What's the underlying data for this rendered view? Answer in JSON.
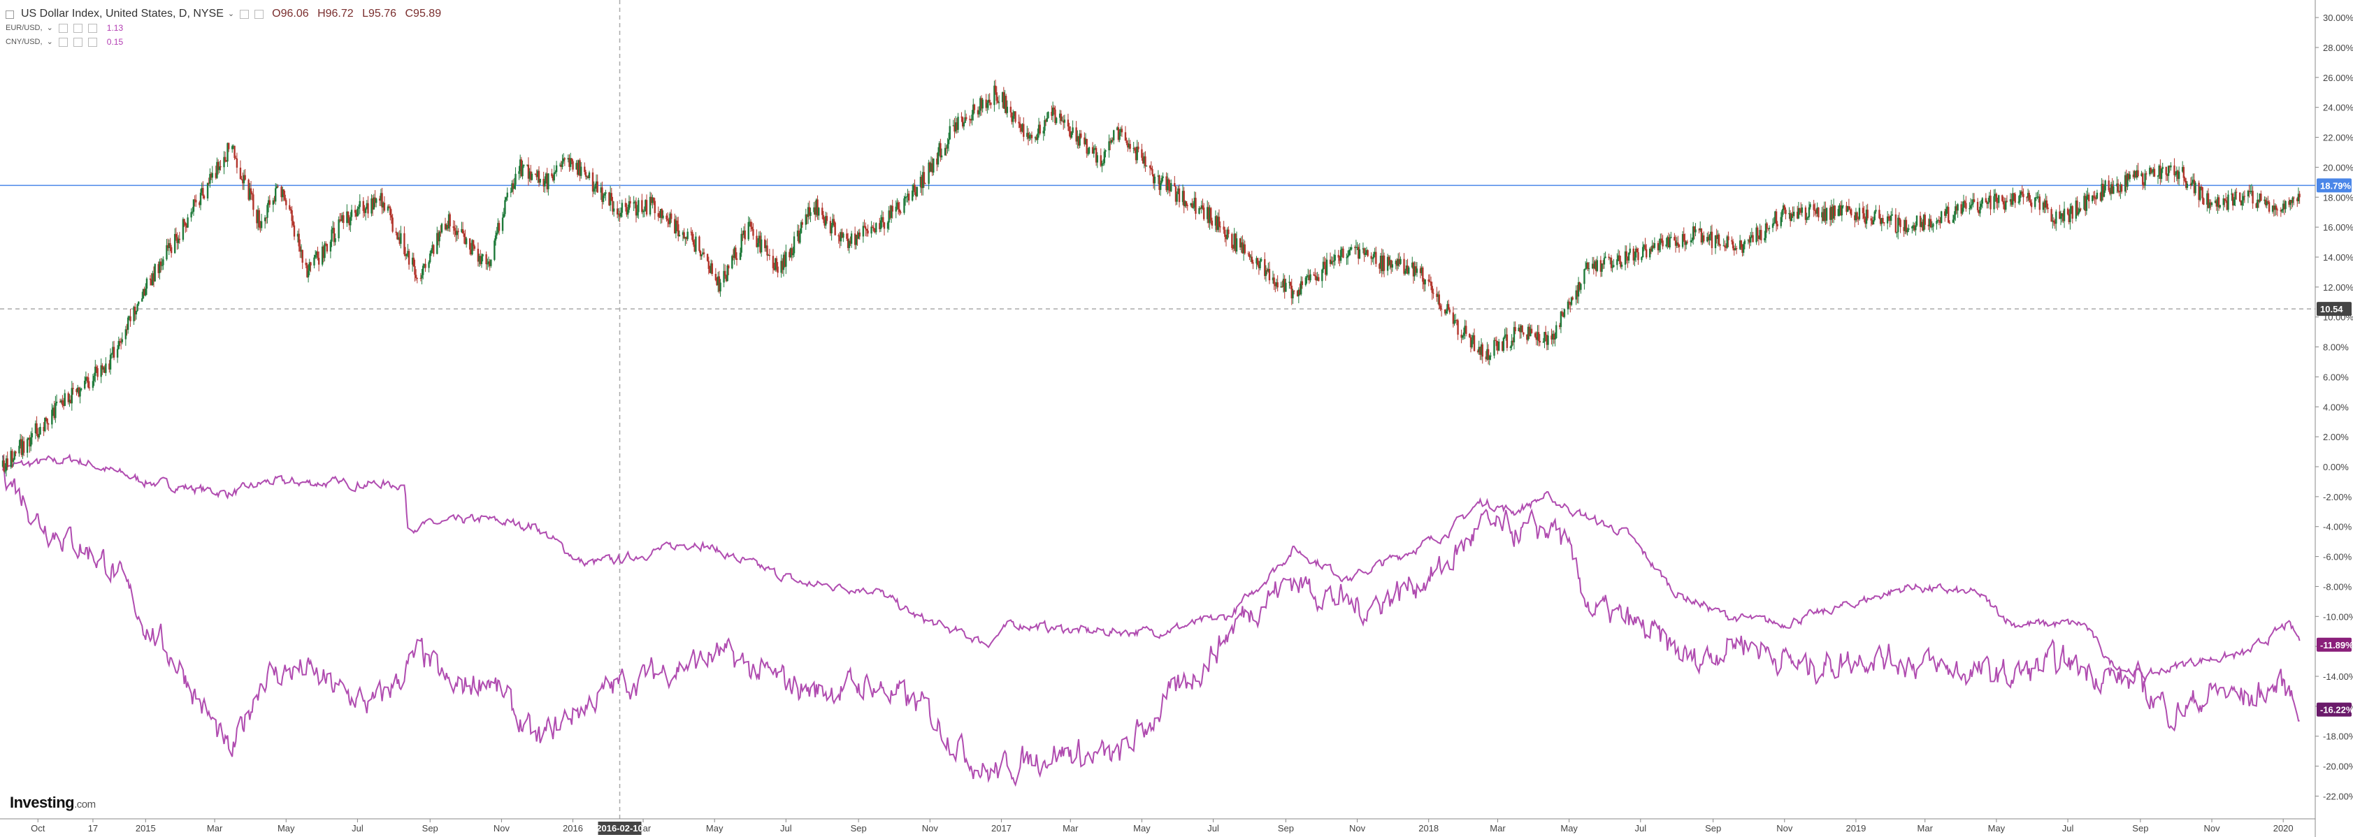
{
  "header": {
    "title": "US Dollar Index, United States, D, NYSE",
    "ohlc": {
      "o": "O96.06",
      "h": "H96.72",
      "l": "L95.76",
      "c": "C95.89"
    },
    "series_rows": [
      {
        "name": "EUR/USD,",
        "value": "1.13"
      },
      {
        "name": "CNY/USD,",
        "value": "0.15"
      }
    ]
  },
  "logo": {
    "text": "Investing",
    "suffix": ".com"
  },
  "colors": {
    "up": "#1f7a3a",
    "down": "#b2342b",
    "compare": "#b04cb0",
    "hline": "#4a86e8",
    "axis_text": "#444"
  },
  "chart_data": {
    "type": "line",
    "title": "US Dollar Index, United States, D, NYSE",
    "y_axis": {
      "unit": "percent",
      "ylim": [
        -23,
        31
      ],
      "ticks": [
        "30.00%",
        "28.00%",
        "26.00%",
        "24.00%",
        "22.00%",
        "20.00%",
        "18.00%",
        "16.00%",
        "14.00%",
        "12.00%",
        "10.00%",
        "8.00%",
        "6.00%",
        "4.00%",
        "2.00%",
        "0.00%",
        "-2.00%",
        "-4.00%",
        "-6.00%",
        "-8.00%",
        "-10.00%",
        "-12.00%",
        "-14.00%",
        "-16.00%",
        "-18.00%",
        "-20.00%",
        "-22.00%"
      ],
      "tick_values": [
        30,
        28,
        26,
        24,
        22,
        20,
        18,
        16,
        14,
        12,
        10,
        8,
        6,
        4,
        2,
        0,
        -2,
        -4,
        -6,
        -8,
        -10,
        -12,
        -14,
        -16,
        -18,
        -20,
        -22
      ]
    },
    "x_axis": {
      "xlim": [
        "2014-09-01",
        "2020-01-20"
      ],
      "ticks": [
        {
          "label": "Oct",
          "date": "2014-10-01"
        },
        {
          "label": "17",
          "date": "2014-11-17"
        },
        {
          "label": "2015",
          "date": "2015-01-01"
        },
        {
          "label": "Mar",
          "date": "2015-03-01"
        },
        {
          "label": "May",
          "date": "2015-05-01"
        },
        {
          "label": "Jul",
          "date": "2015-07-01"
        },
        {
          "label": "Sep",
          "date": "2015-09-01"
        },
        {
          "label": "Nov",
          "date": "2015-11-01"
        },
        {
          "label": "2016",
          "date": "2016-01-01"
        },
        {
          "label": "Mar",
          "date": "2016-03-01"
        },
        {
          "label": "May",
          "date": "2016-05-01"
        },
        {
          "label": "Jul",
          "date": "2016-07-01"
        },
        {
          "label": "Sep",
          "date": "2016-09-01"
        },
        {
          "label": "Nov",
          "date": "2016-11-01"
        },
        {
          "label": "2017",
          "date": "2017-01-01"
        },
        {
          "label": "Mar",
          "date": "2017-03-01"
        },
        {
          "label": "May",
          "date": "2017-05-01"
        },
        {
          "label": "Jul",
          "date": "2017-07-01"
        },
        {
          "label": "Sep",
          "date": "2017-09-01"
        },
        {
          "label": "Nov",
          "date": "2017-11-01"
        },
        {
          "label": "2018",
          "date": "2018-01-01"
        },
        {
          "label": "Mar",
          "date": "2018-03-01"
        },
        {
          "label": "May",
          "date": "2018-05-01"
        },
        {
          "label": "Jul",
          "date": "2018-07-01"
        },
        {
          "label": "Sep",
          "date": "2018-09-01"
        },
        {
          "label": "Nov",
          "date": "2018-11-01"
        },
        {
          "label": "2019",
          "date": "2019-01-01"
        },
        {
          "label": "Mar",
          "date": "2019-03-01"
        },
        {
          "label": "May",
          "date": "2019-05-01"
        },
        {
          "label": "Jul",
          "date": "2019-07-01"
        },
        {
          "label": "Sep",
          "date": "2019-09-01"
        },
        {
          "label": "Nov",
          "date": "2019-11-01"
        },
        {
          "label": "2020",
          "date": "2020-01-01"
        }
      ],
      "cursor_date": "2016-02-10"
    },
    "price_line": {
      "value": 18.79,
      "label": "18.79%"
    },
    "crosshair": {
      "value": 10.54,
      "label": "10.54",
      "date": "2016-02-10"
    },
    "series": [
      {
        "name": "US Dollar Index",
        "style": "candlestick",
        "points": [
          [
            "2014-09-01",
            0
          ],
          [
            "2014-10-01",
            2.5
          ],
          [
            "2014-11-01",
            5
          ],
          [
            "2014-12-01",
            7
          ],
          [
            "2015-01-01",
            12
          ],
          [
            "2015-02-01",
            16
          ],
          [
            "2015-03-15",
            21.5
          ],
          [
            "2015-04-10",
            16
          ],
          [
            "2015-04-25",
            19
          ],
          [
            "2015-05-20",
            13
          ],
          [
            "2015-06-20",
            16.5
          ],
          [
            "2015-07-20",
            18
          ],
          [
            "2015-08-24",
            12.5
          ],
          [
            "2015-09-15",
            16.5
          ],
          [
            "2015-10-20",
            13.5
          ],
          [
            "2015-11-15",
            20
          ],
          [
            "2015-12-10",
            19
          ],
          [
            "2015-12-31",
            20.5
          ],
          [
            "2016-02-10",
            17
          ],
          [
            "2016-03-10",
            17.5
          ],
          [
            "2016-04-20",
            14.5
          ],
          [
            "2016-05-05",
            12
          ],
          [
            "2016-05-30",
            16
          ],
          [
            "2016-06-25",
            13
          ],
          [
            "2016-07-25",
            17.5
          ],
          [
            "2016-08-20",
            15
          ],
          [
            "2016-09-25",
            16.5
          ],
          [
            "2016-10-25",
            19
          ],
          [
            "2016-11-20",
            22.5
          ],
          [
            "2016-12-28",
            25
          ],
          [
            "2017-01-25",
            22
          ],
          [
            "2017-02-15",
            23.5
          ],
          [
            "2017-03-27",
            20.5
          ],
          [
            "2017-04-10",
            22.5
          ],
          [
            "2017-05-15",
            19
          ],
          [
            "2017-06-25",
            17
          ],
          [
            "2017-07-25",
            14.5
          ],
          [
            "2017-09-08",
            11.5
          ],
          [
            "2017-10-25",
            14.5
          ],
          [
            "2017-11-25",
            13.5
          ],
          [
            "2017-12-25",
            13
          ],
          [
            "2018-01-25",
            9.5
          ],
          [
            "2018-02-16",
            7.5
          ],
          [
            "2018-03-20",
            9
          ],
          [
            "2018-04-15",
            8.5
          ],
          [
            "2018-05-15",
            13
          ],
          [
            "2018-06-20",
            14
          ],
          [
            "2018-08-15",
            15.5
          ],
          [
            "2018-09-25",
            14.5
          ],
          [
            "2018-11-01",
            17
          ],
          [
            "2018-12-31",
            17
          ],
          [
            "2019-02-15",
            16
          ],
          [
            "2019-04-15",
            17.5
          ],
          [
            "2019-05-30",
            18
          ],
          [
            "2019-06-25",
            16.5
          ],
          [
            "2019-08-01",
            18.5
          ],
          [
            "2019-09-30",
            20
          ],
          [
            "2019-10-30",
            17.5
          ],
          [
            "2019-12-05",
            18
          ],
          [
            "2019-12-31",
            17
          ],
          [
            "2020-01-15",
            18.5
          ]
        ]
      },
      {
        "name": "EUR/USD",
        "style": "line",
        "points": [
          [
            "2014-09-01",
            0
          ],
          [
            "2014-10-01",
            -3.5
          ],
          [
            "2014-11-01",
            -5
          ],
          [
            "2014-12-01",
            -6.5
          ],
          [
            "2015-01-01",
            -10.5
          ],
          [
            "2015-02-01",
            -13.5
          ],
          [
            "2015-03-15",
            -19.5
          ],
          [
            "2015-04-10",
            -14
          ],
          [
            "2015-05-15",
            -13.5
          ],
          [
            "2015-06-15",
            -15
          ],
          [
            "2015-07-15",
            -16
          ],
          [
            "2015-08-24",
            -12.5
          ],
          [
            "2015-09-20",
            -15
          ],
          [
            "2015-10-20",
            -14
          ],
          [
            "2015-12-01",
            -18.5
          ],
          [
            "2015-12-31",
            -16.5
          ],
          [
            "2016-02-10",
            -14.5
          ],
          [
            "2016-05-05",
            -12.5
          ],
          [
            "2016-06-15",
            -14
          ],
          [
            "2016-07-25",
            -15
          ],
          [
            "2016-09-10",
            -14.5
          ],
          [
            "2016-10-25",
            -16
          ],
          [
            "2016-12-20",
            -20.5
          ],
          [
            "2017-02-15",
            -19
          ],
          [
            "2017-04-10",
            -19.5
          ],
          [
            "2017-05-25",
            -15.5
          ],
          [
            "2017-06-25",
            -13
          ],
          [
            "2017-07-25",
            -10
          ],
          [
            "2017-09-05",
            -7.5
          ],
          [
            "2017-11-05",
            -9.5
          ],
          [
            "2018-01-10",
            -7
          ],
          [
            "2018-02-15",
            -4
          ],
          [
            "2018-03-25",
            -4.5
          ],
          [
            "2018-04-20",
            -4
          ],
          [
            "2018-05-20",
            -9.5
          ],
          [
            "2018-06-25",
            -10.5
          ],
          [
            "2018-08-15",
            -13
          ],
          [
            "2018-09-25",
            -11.5
          ],
          [
            "2018-11-20",
            -13.5
          ],
          [
            "2019-01-15",
            -12.5
          ],
          [
            "2019-03-15",
            -13.5
          ],
          [
            "2019-05-15",
            -14
          ],
          [
            "2019-06-25",
            -13
          ],
          [
            "2019-08-30",
            -14.5
          ],
          [
            "2019-09-30",
            -16.5
          ],
          [
            "2019-11-05",
            -15
          ],
          [
            "2019-12-05",
            -15.5
          ],
          [
            "2019-12-31",
            -14.5
          ],
          [
            "2020-01-18",
            -16.2
          ]
        ]
      },
      {
        "name": "CNY/USD",
        "style": "line",
        "points": [
          [
            "2014-09-01",
            0
          ],
          [
            "2014-11-01",
            0.5
          ],
          [
            "2015-01-01",
            -1
          ],
          [
            "2015-03-15",
            -1.8
          ],
          [
            "2015-04-15",
            -1
          ],
          [
            "2015-08-10",
            -1.2
          ],
          [
            "2015-08-13",
            -4
          ],
          [
            "2015-10-15",
            -3.5
          ],
          [
            "2015-12-01",
            -4
          ],
          [
            "2016-01-10",
            -6.5
          ],
          [
            "2016-02-10",
            -6.2
          ],
          [
            "2016-04-15",
            -5
          ],
          [
            "2016-05-15",
            -6
          ],
          [
            "2016-07-15",
            -7.8
          ],
          [
            "2016-09-15",
            -8.2
          ],
          [
            "2016-10-20",
            -10
          ],
          [
            "2016-12-20",
            -11.8
          ],
          [
            "2017-01-10",
            -10.5
          ],
          [
            "2017-03-15",
            -11
          ],
          [
            "2017-05-15",
            -11
          ],
          [
            "2017-07-15",
            -10
          ],
          [
            "2017-09-08",
            -5.5
          ],
          [
            "2017-10-25",
            -7.5
          ],
          [
            "2018-01-15",
            -4.5
          ],
          [
            "2018-02-15",
            -2.3
          ],
          [
            "2018-03-15",
            -3
          ],
          [
            "2018-04-10",
            -2
          ],
          [
            "2018-05-20",
            -3.5
          ],
          [
            "2018-06-20",
            -4.5
          ],
          [
            "2018-08-01",
            -8.5
          ],
          [
            "2018-09-15",
            -10
          ],
          [
            "2018-10-30",
            -10.5
          ],
          [
            "2018-12-15",
            -9.5
          ],
          [
            "2019-02-15",
            -8
          ],
          [
            "2019-04-15",
            -8.5
          ],
          [
            "2019-05-15",
            -10.5
          ],
          [
            "2019-07-15",
            -10.5
          ],
          [
            "2019-08-05",
            -13
          ],
          [
            "2019-09-05",
            -14
          ],
          [
            "2019-10-15",
            -13
          ],
          [
            "2019-12-01",
            -12.5
          ],
          [
            "2020-01-05",
            -10.5
          ],
          [
            "2020-01-18",
            -11.9
          ]
        ]
      }
    ],
    "end_labels": [
      {
        "series": "US Dollar Index",
        "label": "18.79%",
        "value": 18.79
      },
      {
        "series": "CNY/USD",
        "label": "-11.89%",
        "value": -11.89
      },
      {
        "series": "EUR/USD",
        "label": "-16.22%",
        "value": -16.22
      }
    ]
  }
}
